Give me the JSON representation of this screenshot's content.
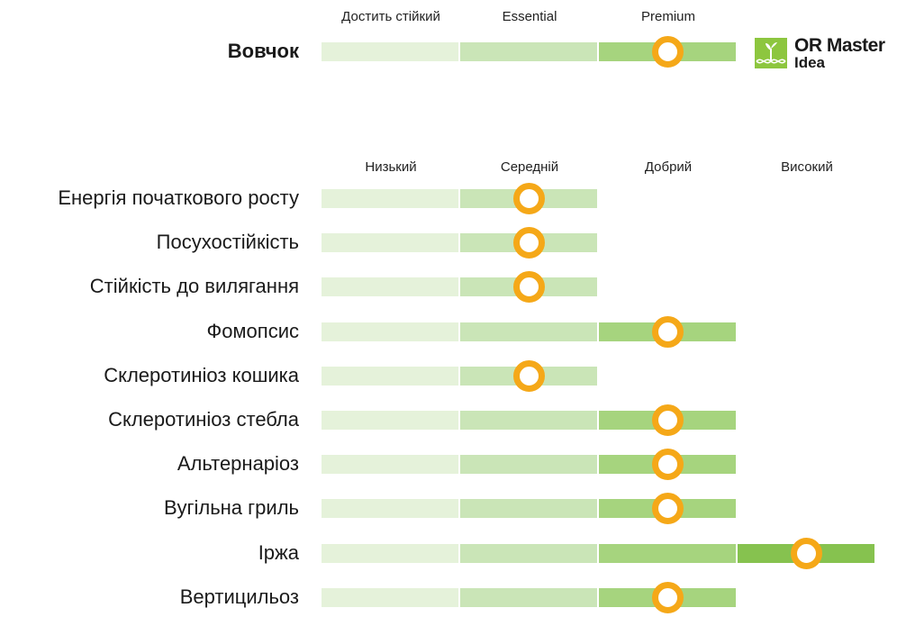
{
  "chart_data": [
    {
      "type": "scale",
      "categories": [
        "Достить стійкий",
        "Essential",
        "Premium"
      ],
      "rows": [
        {
          "label": "Вовчок",
          "value": 3,
          "max": 3
        }
      ]
    },
    {
      "type": "scale",
      "categories": [
        "Низький",
        "Середній",
        "Добрий",
        "Високий"
      ],
      "rows": [
        {
          "label": "Енергія початкового росту",
          "value": 2,
          "max": 2
        },
        {
          "label": "Посухостійкість",
          "value": 2,
          "max": 2
        },
        {
          "label": "Стійкість до вилягання",
          "value": 2,
          "max": 2
        },
        {
          "label": "Фомопсис",
          "value": 3,
          "max": 3
        },
        {
          "label": "Склеротиніоз кошика",
          "value": 2,
          "max": 2
        },
        {
          "label": "Склеротиніоз стебла",
          "value": 3,
          "max": 3
        },
        {
          "label": "Альтернаріоз",
          "value": 3,
          "max": 3
        },
        {
          "label": "Вугільна гриль",
          "value": 3,
          "max": 3
        },
        {
          "label": "Іржа",
          "value": 4,
          "max": 4
        },
        {
          "label": "Вертицильоз",
          "value": 3,
          "max": 3
        }
      ]
    }
  ],
  "colors": {
    "segments": [
      "#e5f2da",
      "#cae5b7",
      "#a6d47e",
      "#86c24f"
    ],
    "marker": "#f5a818"
  },
  "logo": {
    "icon": "sprout-dna-icon",
    "title": "OR Master",
    "subtitle": "Idea"
  }
}
